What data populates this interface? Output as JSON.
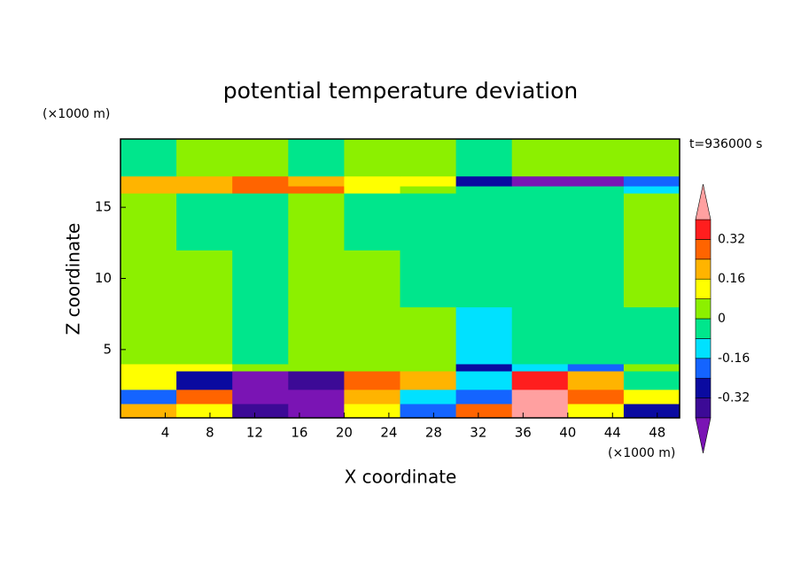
{
  "chart_data": {
    "type": "contour",
    "title": "potential temperature deviation",
    "x_label": "X coordinate",
    "y_label": "Z coordinate",
    "x_unit": "(×1000 m)",
    "y_unit": "(×1000 m)",
    "annotation": "t=936000 s",
    "xlim": [
      0,
      50
    ],
    "ylim": [
      0.2,
      19.8
    ],
    "xticks": [
      4,
      8,
      12,
      16,
      20,
      24,
      28,
      32,
      36,
      40,
      44,
      48
    ],
    "yticks": [
      5,
      10,
      15
    ],
    "xbins": [
      0,
      5,
      10,
      15,
      20,
      25,
      30,
      35,
      40,
      45,
      50
    ],
    "ybins": [
      0.2,
      1.2,
      2.2,
      3.5,
      4,
      8,
      12,
      16,
      16.5,
      17.2,
      19.8
    ],
    "values": [
      [
        0.2,
        0.1,
        -0.35,
        -0.42,
        0.1,
        -0.2,
        0.3,
        0.45,
        0.1,
        -0.3
      ],
      [
        -0.2,
        0.3,
        -0.42,
        -0.45,
        0.2,
        -0.1,
        -0.2,
        0.45,
        0.3,
        0.1
      ],
      [
        0.1,
        -0.3,
        -0.45,
        -0.4,
        0.25,
        0.2,
        -0.15,
        0.35,
        0.2,
        -0.05
      ],
      [
        0.12,
        0.1,
        0.05,
        0.05,
        0.05,
        0.05,
        -0.28,
        -0.1,
        -0.2,
        0.05
      ],
      [
        0.04,
        0.04,
        -0.04,
        0.04,
        0.04,
        0.04,
        -0.1,
        -0.04,
        -0.04,
        -0.04
      ],
      [
        0.04,
        0.04,
        -0.04,
        0.04,
        0.04,
        -0.04,
        -0.04,
        -0.04,
        -0.04,
        0.04
      ],
      [
        0.04,
        -0.04,
        -0.04,
        0.04,
        -0.04,
        -0.04,
        -0.04,
        -0.04,
        -0.04,
        0.04
      ],
      [
        0.2,
        0.2,
        0.25,
        0.3,
        0.12,
        0.05,
        -0.04,
        -0.04,
        -0.04,
        -0.1
      ],
      [
        0.2,
        0.2,
        0.25,
        0.2,
        0.12,
        0.1,
        -0.3,
        -0.42,
        -0.42,
        -0.2
      ],
      [
        -0.04,
        0.04,
        0.04,
        -0.04,
        0.04,
        0.04,
        -0.04,
        0.04,
        0.04,
        0.04
      ]
    ],
    "levels": [
      -0.4,
      -0.32,
      -0.24,
      -0.16,
      -0.08,
      0,
      0.08,
      0.16,
      0.24,
      0.32,
      0.4
    ],
    "colors": [
      "#7a14b4",
      "#3c0a96",
      "#0a0aa0",
      "#1464ff",
      "#00e1ff",
      "#00e68c",
      "#8cf000",
      "#ffff00",
      "#ffb400",
      "#ff6400",
      "#ff1e1e",
      "#ffa0a0"
    ],
    "colorbar_ticks": [
      0.32,
      0.16,
      0,
      -0.16,
      -0.32
    ]
  }
}
